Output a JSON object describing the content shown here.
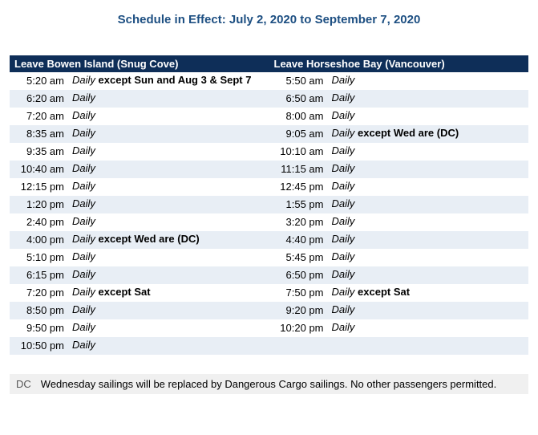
{
  "colors": {
    "header_bg": "#0e2e58",
    "header_text": "#ffffff",
    "row_alt_bg": "#e8eef5",
    "title_color": "#1d4f82",
    "body_bg": "#ffffff",
    "footnote_bg": "#f0f0f0"
  },
  "title": "Schedule in Effect: July 2, 2020 to September 7, 2020",
  "left": {
    "header": "Leave Bowen Island (Snug Cove)",
    "rows": [
      {
        "time": "5:20 am",
        "italic": "Daily",
        "bold": " except Sun and Aug 3 & Sept 7"
      },
      {
        "time": "6:20 am",
        "italic": "Daily",
        "bold": ""
      },
      {
        "time": "7:20 am",
        "italic": "Daily",
        "bold": ""
      },
      {
        "time": "8:35 am",
        "italic": "Daily",
        "bold": ""
      },
      {
        "time": "9:35 am",
        "italic": "Daily",
        "bold": ""
      },
      {
        "time": "10:40 am",
        "italic": "Daily",
        "bold": ""
      },
      {
        "time": "12:15 pm",
        "italic": "Daily",
        "bold": ""
      },
      {
        "time": "1:20 pm",
        "italic": "Daily",
        "bold": ""
      },
      {
        "time": "2:40 pm",
        "italic": "Daily",
        "bold": ""
      },
      {
        "time": "4:00 pm",
        "italic": "Daily",
        "bold": " except Wed are (DC)"
      },
      {
        "time": "5:10 pm",
        "italic": "Daily",
        "bold": ""
      },
      {
        "time": "6:15 pm",
        "italic": "Daily",
        "bold": ""
      },
      {
        "time": "7:20 pm",
        "italic": "Daily",
        "bold": " except Sat"
      },
      {
        "time": "8:50 pm",
        "italic": "Daily",
        "bold": ""
      },
      {
        "time": "9:50 pm",
        "italic": "Daily",
        "bold": ""
      },
      {
        "time": "10:50 pm",
        "italic": "Daily",
        "bold": ""
      }
    ]
  },
  "right": {
    "header": "Leave Horseshoe Bay (Vancouver)",
    "rows": [
      {
        "time": "5:50 am",
        "italic": "Daily",
        "bold": ""
      },
      {
        "time": "6:50 am",
        "italic": "Daily",
        "bold": ""
      },
      {
        "time": "8:00 am",
        "italic": "Daily",
        "bold": ""
      },
      {
        "time": "9:05 am",
        "italic": "Daily",
        "bold": " except Wed are (DC)"
      },
      {
        "time": "10:10 am",
        "italic": "Daily",
        "bold": ""
      },
      {
        "time": "11:15 am",
        "italic": "Daily",
        "bold": ""
      },
      {
        "time": "12:45 pm",
        "italic": "Daily",
        "bold": ""
      },
      {
        "time": "1:55 pm",
        "italic": "Daily",
        "bold": ""
      },
      {
        "time": "3:20 pm",
        "italic": "Daily",
        "bold": ""
      },
      {
        "time": "4:40 pm",
        "italic": "Daily",
        "bold": ""
      },
      {
        "time": "5:45 pm",
        "italic": "Daily",
        "bold": ""
      },
      {
        "time": "6:50 pm",
        "italic": "Daily",
        "bold": ""
      },
      {
        "time": "7:50 pm",
        "italic": "Daily",
        "bold": " except Sat"
      },
      {
        "time": "9:20 pm",
        "italic": "Daily",
        "bold": ""
      },
      {
        "time": "10:20 pm",
        "italic": "Daily",
        "bold": ""
      },
      {
        "blank": true
      }
    ]
  },
  "footnote": {
    "code": "DC",
    "text": "Wednesday sailings will be replaced by Dangerous Cargo sailings. No other passengers permitted."
  }
}
